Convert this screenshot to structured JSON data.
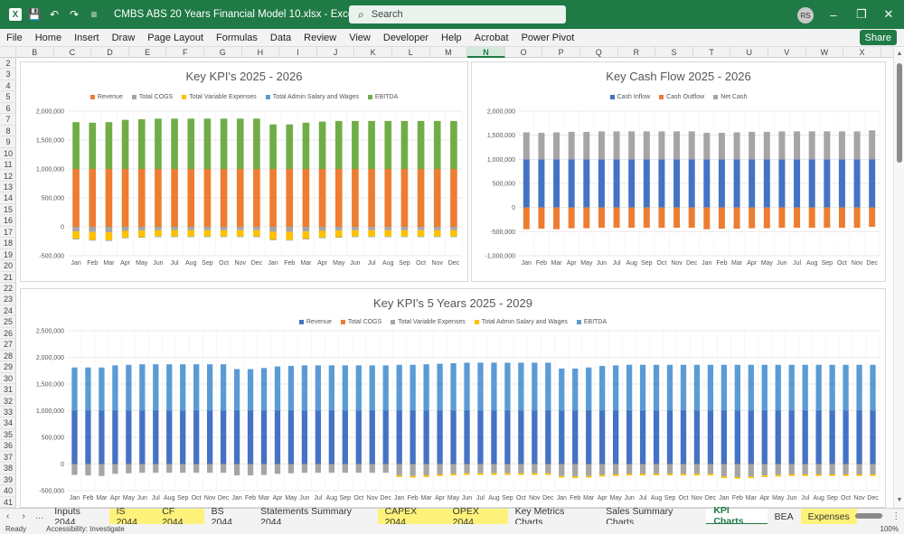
{
  "titlebar": {
    "doc_title": "CMBS ABS 20 Years Financial Model 10.xlsx  -  Excel",
    "search_placeholder": "Search",
    "user_initials": "RS",
    "excel_label": "X",
    "save_glyph": "💾",
    "undo_glyph": "↶",
    "redo_glyph": "↷",
    "qat_glyph": "≡",
    "minimize_glyph": "–",
    "restore_glyph": "❐",
    "close_glyph": "✕",
    "search_glyph": "⌕"
  },
  "menu": {
    "items": [
      "File",
      "Home",
      "Insert",
      "Draw",
      "Page Layout",
      "Formulas",
      "Data",
      "Review",
      "View",
      "Developer",
      "Help",
      "Acrobat",
      "Power Pivot"
    ],
    "share_label": "Share"
  },
  "columns": [
    "B",
    "C",
    "D",
    "E",
    "F",
    "G",
    "H",
    "I",
    "J",
    "K",
    "L",
    "M",
    "N",
    "O",
    "P",
    "Q",
    "R",
    "S",
    "T",
    "U",
    "V",
    "W",
    "X"
  ],
  "selected_column": "N",
  "rows": [
    "2",
    "3",
    "4",
    "5",
    "6",
    "7",
    "8",
    "9",
    "10",
    "11",
    "12",
    "13",
    "14",
    "15",
    "16",
    "17",
    "18",
    "19",
    "20",
    "21",
    "22",
    "23",
    "24",
    "25",
    "26",
    "27",
    "28",
    "29",
    "30",
    "31",
    "32",
    "33",
    "34",
    "35",
    "36",
    "37",
    "38",
    "39",
    "40",
    "41"
  ],
  "colors": {
    "excel_green": "#1f7a45",
    "revenue_orange": "#ed7d31",
    "cogs_gray": "#a5a5a5",
    "variable_yellow": "#ffc000",
    "admin_blue": "#5b9bd5",
    "ebitda_green": "#70ad47",
    "inflow_blue": "#4472c4",
    "tab_yellow": "#fff27a"
  },
  "chart_data": [
    {
      "type": "bar",
      "stacked": true,
      "title": "Key KPI's 2025 - 2026",
      "categories": [
        "Jan",
        "Feb",
        "Mar",
        "Apr",
        "May",
        "Jun",
        "Jul",
        "Aug",
        "Sep",
        "Oct",
        "Nov",
        "Dec",
        "Jan",
        "Feb",
        "Mar",
        "Apr",
        "May",
        "Jun",
        "Jul",
        "Aug",
        "Sep",
        "Oct",
        "Nov",
        "Dec"
      ],
      "series": [
        {
          "name": "Revenue",
          "color": "#ed7d31",
          "values": [
            1000000,
            1000000,
            1000000,
            1000000,
            1000000,
            1000000,
            1000000,
            1000000,
            1000000,
            1000000,
            1000000,
            1000000,
            1000000,
            1000000,
            1000000,
            1000000,
            1000000,
            1000000,
            1000000,
            1000000,
            1000000,
            1000000,
            1000000,
            1000000
          ]
        },
        {
          "name": "Total COGS",
          "color": "#a5a5a5",
          "values": [
            -80000,
            -90000,
            -95000,
            -70000,
            -65000,
            -60000,
            -60000,
            -60000,
            -60000,
            -60000,
            -60000,
            -60000,
            -85000,
            -90000,
            -80000,
            -70000,
            -65000,
            -60000,
            -60000,
            -60000,
            -60000,
            -60000,
            -60000,
            -60000
          ]
        },
        {
          "name": "Total Variable Expenses",
          "color": "#ffc000",
          "values": [
            -130000,
            -140000,
            -140000,
            -120000,
            -115000,
            -110000,
            -110000,
            -110000,
            -110000,
            -110000,
            -110000,
            -110000,
            -140000,
            -140000,
            -130000,
            -120000,
            -115000,
            -110000,
            -110000,
            -110000,
            -110000,
            -110000,
            -110000,
            -110000
          ]
        },
        {
          "name": "Total Admin Salary and Wages",
          "color": "#5b9bd5",
          "values": [
            -5000,
            -5000,
            -5000,
            -5000,
            -5000,
            -5000,
            -5000,
            -5000,
            -5000,
            -5000,
            -5000,
            -5000,
            -5000,
            -5000,
            -5000,
            -5000,
            -5000,
            -5000,
            -5000,
            -5000,
            -5000,
            -5000,
            -5000,
            -5000
          ]
        },
        {
          "name": "EBITDA",
          "color": "#70ad47",
          "values": [
            810000,
            800000,
            810000,
            850000,
            860000,
            870000,
            870000,
            870000,
            870000,
            870000,
            870000,
            870000,
            770000,
            770000,
            800000,
            820000,
            830000,
            830000,
            830000,
            830000,
            830000,
            830000,
            830000,
            830000
          ]
        }
      ],
      "ylim": [
        -500000,
        2000000
      ],
      "yticks": [
        "2,000,000",
        "1,500,000",
        "1,000,000",
        "500,000",
        "0",
        "-500,000"
      ],
      "grid": true,
      "legend": "top"
    },
    {
      "type": "bar",
      "stacked": true,
      "title": "Key Cash Flow 2025 - 2026",
      "categories": [
        "Jan",
        "Feb",
        "Mar",
        "Apr",
        "May",
        "Jun",
        "Jul",
        "Aug",
        "Sep",
        "Oct",
        "Nov",
        "Dec",
        "Jan",
        "Feb",
        "Mar",
        "Apr",
        "May",
        "Jun",
        "Jul",
        "Aug",
        "Sep",
        "Oct",
        "Nov",
        "Dec"
      ],
      "series": [
        {
          "name": "Cash Inflow",
          "color": "#4472c4",
          "values": [
            1000000,
            1000000,
            1000000,
            1000000,
            1000000,
            1000000,
            1000000,
            1000000,
            1000000,
            1000000,
            1000000,
            1000000,
            1000000,
            1000000,
            1000000,
            1000000,
            1000000,
            1000000,
            1000000,
            1000000,
            1000000,
            1000000,
            1000000,
            1000000
          ]
        },
        {
          "name": "Cash Outflow",
          "color": "#ed7d31",
          "values": [
            -450000,
            -440000,
            -450000,
            -430000,
            -430000,
            -420000,
            -420000,
            -420000,
            -420000,
            -420000,
            -420000,
            -420000,
            -450000,
            -440000,
            -440000,
            -430000,
            -430000,
            -420000,
            -420000,
            -420000,
            -420000,
            -420000,
            -420000,
            -400000
          ]
        },
        {
          "name": "Net Cash",
          "color": "#a5a5a5",
          "values": [
            560000,
            550000,
            560000,
            570000,
            570000,
            580000,
            580000,
            580000,
            580000,
            580000,
            580000,
            580000,
            550000,
            550000,
            560000,
            570000,
            570000,
            580000,
            580000,
            580000,
            580000,
            580000,
            580000,
            600000
          ]
        }
      ],
      "ylim": [
        -1000000,
        2000000
      ],
      "yticks": [
        "2,000,000",
        "1,500,000",
        "1,000,000",
        "500,000",
        "0",
        "-500,000",
        "-1,000,000"
      ],
      "grid": true,
      "legend": "top"
    },
    {
      "type": "bar",
      "stacked": true,
      "title": "Key KPI's 5 Years 2025 - 2029",
      "categories": [
        "Jan",
        "Feb",
        "Mar",
        "Apr",
        "May",
        "Jun",
        "Jul",
        "Aug",
        "Sep",
        "Oct",
        "Nov",
        "Dec",
        "Jan",
        "Feb",
        "Mar",
        "Apr",
        "May",
        "Jun",
        "Jul",
        "Aug",
        "Sep",
        "Oct",
        "Nov",
        "Dec",
        "Jan",
        "Feb",
        "Mar",
        "Apr",
        "May",
        "Jun",
        "Jul",
        "Aug",
        "Sep",
        "Oct",
        "Nov",
        "Dec",
        "Jan",
        "Feb",
        "Mar",
        "Apr",
        "May",
        "Jun",
        "Jul",
        "Aug",
        "Sep",
        "Oct",
        "Nov",
        "Dec",
        "Jan",
        "Feb",
        "Mar",
        "Apr",
        "May",
        "Jun",
        "Jul",
        "Aug",
        "Sep",
        "Oct",
        "Nov",
        "Dec"
      ],
      "series": [
        {
          "name": "Revenue",
          "color": "#4472c4",
          "values": [
            1000000,
            1000000,
            1000000,
            1000000,
            1000000,
            1000000,
            1000000,
            1000000,
            1000000,
            1000000,
            1000000,
            1000000,
            1000000,
            1000000,
            1000000,
            1000000,
            1000000,
            1000000,
            1000000,
            1000000,
            1000000,
            1000000,
            1000000,
            1000000,
            1000000,
            1000000,
            1000000,
            1000000,
            1000000,
            1000000,
            1000000,
            1000000,
            1000000,
            1000000,
            1000000,
            1000000,
            1000000,
            1000000,
            1000000,
            1000000,
            1000000,
            1000000,
            1000000,
            1000000,
            1000000,
            1000000,
            1000000,
            1000000,
            1000000,
            1000000,
            1000000,
            1000000,
            1000000,
            1000000,
            1000000,
            1000000,
            1000000,
            1000000,
            1000000,
            1000000
          ]
        },
        {
          "name": "Total COGS",
          "color": "#ed7d31",
          "values": [
            -5000,
            -5000,
            -5000,
            -5000,
            -5000,
            -5000,
            -5000,
            -5000,
            -5000,
            -5000,
            -5000,
            -5000,
            -5000,
            -5000,
            -5000,
            -5000,
            -5000,
            -5000,
            -5000,
            -5000,
            -5000,
            -5000,
            -5000,
            -5000,
            -5000,
            -5000,
            -5000,
            -5000,
            -5000,
            -5000,
            -5000,
            -5000,
            -5000,
            -5000,
            -5000,
            -5000,
            -5000,
            -5000,
            -5000,
            -5000,
            -5000,
            -5000,
            -5000,
            -5000,
            -5000,
            -5000,
            -5000,
            -5000,
            -5000,
            -5000,
            -5000,
            -5000,
            -5000,
            -5000,
            -5000,
            -5000,
            -5000,
            -5000,
            -5000,
            -5000
          ]
        },
        {
          "name": "Total Variable Expenses",
          "color": "#a5a5a5",
          "values": [
            -200000,
            -210000,
            -220000,
            -180000,
            -170000,
            -160000,
            -160000,
            -160000,
            -160000,
            -160000,
            -160000,
            -160000,
            -210000,
            -210000,
            -200000,
            -180000,
            -170000,
            -160000,
            -160000,
            -160000,
            -160000,
            -160000,
            -160000,
            -160000,
            -210000,
            -220000,
            -210000,
            -190000,
            -180000,
            -170000,
            -170000,
            -170000,
            -170000,
            -170000,
            -170000,
            -170000,
            -220000,
            -230000,
            -220000,
            -200000,
            -190000,
            -180000,
            -180000,
            -180000,
            -180000,
            -180000,
            -180000,
            -180000,
            -230000,
            -240000,
            -230000,
            -210000,
            -200000,
            -190000,
            -190000,
            -190000,
            -190000,
            -190000,
            -190000,
            -190000
          ]
        },
        {
          "name": "Total Admin Salary and Wages",
          "color": "#ffc000",
          "values": [
            0,
            0,
            0,
            0,
            0,
            0,
            0,
            0,
            0,
            0,
            0,
            0,
            0,
            0,
            0,
            0,
            0,
            0,
            0,
            0,
            0,
            0,
            0,
            0,
            -30000,
            -30000,
            -30000,
            -30000,
            -30000,
            -30000,
            -30000,
            -30000,
            -30000,
            -30000,
            -30000,
            -30000,
            -30000,
            -30000,
            -30000,
            -30000,
            -30000,
            -30000,
            -30000,
            -30000,
            -30000,
            -30000,
            -30000,
            -30000,
            -30000,
            -30000,
            -30000,
            -30000,
            -30000,
            -30000,
            -30000,
            -30000,
            -30000,
            -30000,
            -30000,
            -30000
          ]
        },
        {
          "name": "EBITDA",
          "color": "#5b9bd5",
          "values": [
            810000,
            810000,
            810000,
            850000,
            860000,
            870000,
            870000,
            870000,
            870000,
            870000,
            870000,
            870000,
            780000,
            780000,
            800000,
            830000,
            840000,
            850000,
            850000,
            850000,
            850000,
            850000,
            850000,
            850000,
            860000,
            860000,
            870000,
            880000,
            890000,
            900000,
            900000,
            900000,
            900000,
            900000,
            900000,
            900000,
            790000,
            790000,
            810000,
            840000,
            850000,
            860000,
            860000,
            860000,
            860000,
            860000,
            860000,
            860000,
            860000,
            860000,
            860000,
            860000,
            860000,
            860000,
            860000,
            860000,
            860000,
            860000,
            860000,
            860000
          ]
        }
      ],
      "ylim": [
        -500000,
        2500000
      ],
      "yticks": [
        "2,500,000",
        "2,000,000",
        "1,500,000",
        "1,000,000",
        "500,000",
        "0",
        "-500,000"
      ],
      "grid": true,
      "legend": "top"
    }
  ],
  "sheet_tabs": [
    {
      "label": "Inputs 2044",
      "style": "plain"
    },
    {
      "label": "IS 2044",
      "style": "yellow"
    },
    {
      "label": "CF 2044",
      "style": "yellow"
    },
    {
      "label": "BS 2044",
      "style": "plain"
    },
    {
      "label": "Statements Summary 2044",
      "style": "plain"
    },
    {
      "label": "CAPEX 2044",
      "style": "yellow"
    },
    {
      "label": "OPEX 2044",
      "style": "yellow"
    },
    {
      "label": "Key Metrics Charts",
      "style": "plain"
    },
    {
      "label": "Sales Summary Charts",
      "style": "plain"
    },
    {
      "label": "KPI Charts",
      "style": "active"
    },
    {
      "label": "BEA",
      "style": "plain"
    },
    {
      "label": "Expenses",
      "style": "yellow"
    }
  ],
  "tabbar": {
    "prev_glyph": "‹",
    "next_glyph": "›",
    "more_glyph": "…",
    "add_glyph": "+",
    "menu_glyph": "⋮"
  },
  "status": {
    "ready": "Ready",
    "accessibility": "Accessibility: Investigate",
    "zoom": "100%"
  }
}
